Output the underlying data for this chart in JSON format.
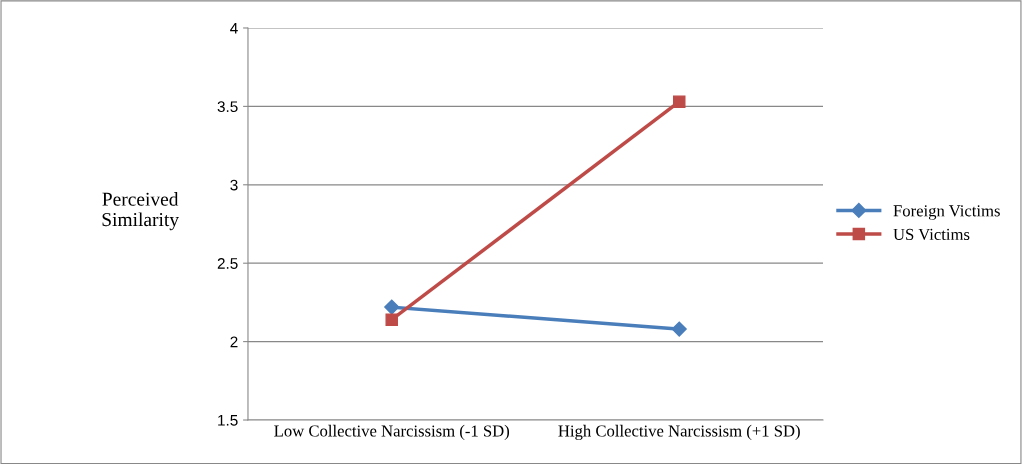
{
  "chart_data": {
    "type": "line",
    "ylabel": "Perceived\nSimilarity",
    "categories": [
      "Low Collective Narcissism (-1 SD)",
      "High Collective Narcissism (+1 SD)"
    ],
    "series": [
      {
        "name": "Foreign Victims",
        "color": "#4a7ebb",
        "values": [
          2.22,
          2.08
        ],
        "marker": "diamond"
      },
      {
        "name": "US Victims",
        "color": "#be4b48",
        "values": [
          2.14,
          3.53
        ],
        "marker": "square"
      }
    ],
    "ylim": [
      1.5,
      4
    ],
    "yticks": [
      1.5,
      2,
      2.5,
      3,
      3.5,
      4
    ],
    "grid": "y",
    "legend": "right",
    "line_style": "solid"
  }
}
